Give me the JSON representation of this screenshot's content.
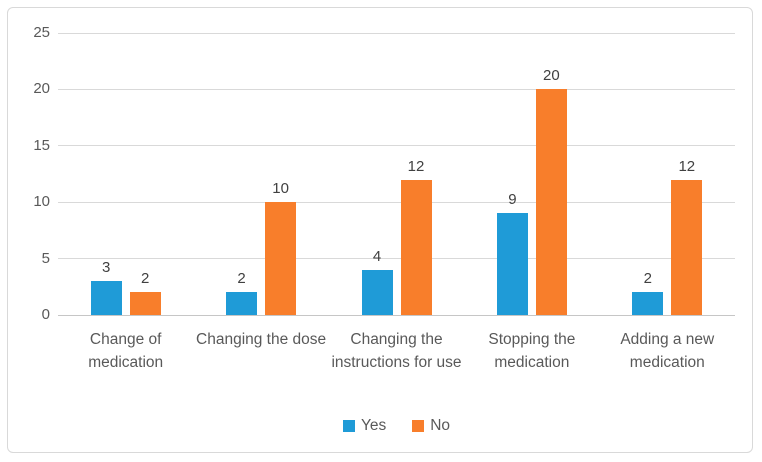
{
  "chart_data": {
    "type": "bar",
    "title": "",
    "xlabel": "",
    "ylabel": "",
    "categories": [
      "Change of medication",
      "Changing the dose",
      "Changing the instructions for use",
      "Stopping the medication",
      "Adding a new medication"
    ],
    "series": [
      {
        "name": "Yes",
        "color": "#1f9bd7",
        "values": [
          3,
          2,
          4,
          9,
          2
        ]
      },
      {
        "name": "No",
        "color": "#f87e2b",
        "values": [
          2,
          10,
          12,
          20,
          12
        ]
      }
    ],
    "ylim": [
      0,
      25
    ],
    "yticks": [
      0,
      5,
      10,
      15,
      20,
      25
    ],
    "grid": true,
    "data_labels": true,
    "legend_position": "bottom"
  },
  "style": {
    "gridline_color": "#d9d9d9",
    "axis_text_color": "#595959",
    "data_label_color": "#404040",
    "border_color": "#d9d9d9"
  }
}
